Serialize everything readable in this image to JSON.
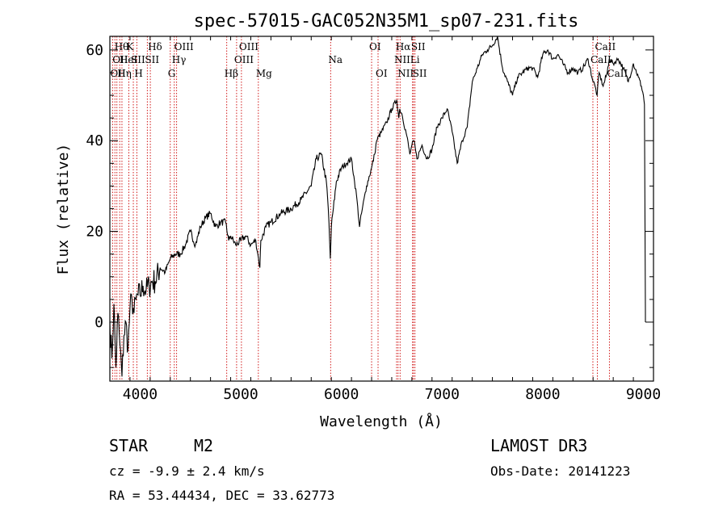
{
  "chart_data": {
    "type": "line",
    "title": "spec-57015-GAC052N35M1_sp07-231.fits",
    "xlabel": "Wavelength (Å)",
    "ylabel": "Flux (relative)",
    "xlim": [
      3700,
      9100
    ],
    "ylim": [
      -13,
      63
    ],
    "xticks": [
      4000,
      5000,
      6000,
      7000,
      8000,
      9000
    ],
    "yticks": [
      0,
      20,
      40,
      60
    ],
    "series": [
      {
        "name": "spectrum",
        "x": [
          3700,
          3720,
          3740,
          3760,
          3780,
          3800,
          3820,
          3840,
          3860,
          3880,
          3900,
          3920,
          3940,
          3960,
          3980,
          4000,
          4030,
          4060,
          4090,
          4120,
          4150,
          4200,
          4250,
          4300,
          4350,
          4400,
          4450,
          4500,
          4550,
          4600,
          4650,
          4700,
          4750,
          4800,
          4850,
          4880,
          4900,
          4950,
          5000,
          5050,
          5100,
          5150,
          5170,
          5190,
          5200,
          5250,
          5300,
          5400,
          5500,
          5600,
          5700,
          5750,
          5800,
          5850,
          5870,
          5890,
          5900,
          5920,
          5950,
          6000,
          6050,
          6100,
          6130,
          6150,
          6180,
          6200,
          6250,
          6300,
          6330,
          6350,
          6400,
          6450,
          6500,
          6550,
          6570,
          6580,
          6600,
          6650,
          6680,
          6700,
          6720,
          6750,
          6800,
          6850,
          6900,
          6950,
          7000,
          7050,
          7100,
          7150,
          7200,
          7250,
          7300,
          7350,
          7400,
          7450,
          7500,
          7550,
          7600,
          7650,
          7700,
          7750,
          7800,
          7850,
          7900,
          7950,
          8000,
          8050,
          8100,
          8150,
          8200,
          8250,
          8300,
          8350,
          8400,
          8450,
          8500,
          8520,
          8540,
          8560,
          8600,
          8640,
          8660,
          8700,
          8750,
          8800,
          8850,
          8900,
          8950,
          8980,
          9000,
          9010,
          9020
        ],
        "y": [
          0,
          -8,
          4,
          -10,
          2,
          -5,
          -12,
          -3,
          0,
          -6,
          3,
          5,
          2,
          5,
          6,
          6,
          8,
          7,
          8,
          9,
          9,
          12,
          11,
          14,
          15,
          15,
          17,
          20,
          17,
          21,
          23,
          24,
          21,
          22,
          22,
          18,
          19,
          17,
          18,
          19,
          17,
          18,
          15,
          12,
          18,
          21,
          22,
          24,
          25,
          27,
          30,
          36,
          37,
          31,
          25,
          14,
          21,
          25,
          31,
          34,
          35,
          36,
          31,
          28,
          21,
          24,
          30,
          34,
          37,
          40,
          42,
          44,
          47,
          49,
          45,
          47,
          46,
          41,
          37,
          39,
          40,
          36,
          39,
          36,
          38,
          43,
          45,
          47,
          42,
          35,
          40,
          43,
          53,
          56,
          59,
          60,
          61,
          63,
          56,
          53,
          50,
          54,
          55,
          56,
          56,
          54,
          59,
          60,
          58,
          59,
          57,
          55,
          56,
          55,
          56,
          58,
          53,
          52,
          50,
          55,
          52,
          55,
          58,
          57,
          58,
          56,
          53,
          57,
          54,
          52,
          50,
          48,
          2
        ]
      }
    ],
    "line_labels": [
      {
        "wave": 3727,
        "label": "OII",
        "row": 2,
        "ha": "left"
      },
      {
        "wave": 3750,
        "label": "OII",
        "row": 1,
        "ha": "left"
      },
      {
        "wave": 3770,
        "label": "Hθ",
        "row": 0,
        "ha": "left"
      },
      {
        "wave": 3798,
        "label": "Hη",
        "row": 2,
        "ha": "left"
      },
      {
        "wave": 3820,
        "label": "HeI",
        "row": 1,
        "ha": "left"
      },
      {
        "wave": 3889,
        "label": "K",
        "row": 0,
        "ha": "left"
      },
      {
        "wave": 3933,
        "label": "SII",
        "row": 1,
        "ha": "left"
      },
      {
        "wave": 3968,
        "label": "H",
        "row": 2,
        "ha": "left"
      },
      {
        "wave": 4072,
        "label": "SII",
        "row": 1,
        "ha": "left"
      },
      {
        "wave": 4102,
        "label": "Hδ",
        "row": 0,
        "ha": "left"
      },
      {
        "wave": 4300,
        "label": "G",
        "row": 2,
        "ha": "left"
      },
      {
        "wave": 4340,
        "label": "Hγ",
        "row": 1,
        "ha": "left"
      },
      {
        "wave": 4363,
        "label": "OIII",
        "row": 0,
        "ha": "left"
      },
      {
        "wave": 4861,
        "label": "Hβ",
        "row": 2,
        "ha": "left"
      },
      {
        "wave": 4959,
        "label": "OIII",
        "row": 1,
        "ha": "left"
      },
      {
        "wave": 5007,
        "label": "OIII",
        "row": 0,
        "ha": "left"
      },
      {
        "wave": 5175,
        "label": "Mg",
        "row": 2,
        "ha": "left"
      },
      {
        "wave": 5893,
        "label": "Na",
        "row": 1,
        "ha": "left"
      },
      {
        "wave": 6300,
        "label": "OI",
        "row": 0,
        "ha": "left"
      },
      {
        "wave": 6364,
        "label": "OI",
        "row": 2,
        "ha": "left"
      },
      {
        "wave": 6548,
        "label": "NII",
        "row": 1,
        "ha": "left"
      },
      {
        "wave": 6563,
        "label": "Hα",
        "row": 0,
        "ha": "left"
      },
      {
        "wave": 6583,
        "label": "NII",
        "row": 2,
        "ha": "left"
      },
      {
        "wave": 6707,
        "label": "Li",
        "row": 1,
        "ha": "left"
      },
      {
        "wave": 6716,
        "label": "SII",
        "row": 0,
        "ha": "left"
      },
      {
        "wave": 6731,
        "label": "SII",
        "row": 2,
        "ha": "left"
      },
      {
        "wave": 8498,
        "label": "CaII",
        "row": 1,
        "ha": "left"
      },
      {
        "wave": 8542,
        "label": "CaII",
        "row": 0,
        "ha": "left"
      },
      {
        "wave": 8662,
        "label": "CaII",
        "row": 2,
        "ha": "left"
      }
    ],
    "colors": {
      "line": "#000000",
      "marker": "#cc0000",
      "frame": "#000000"
    }
  },
  "info": {
    "class": "STAR",
    "subclass": "M2",
    "survey": "LAMOST DR3",
    "cz": "cz = -9.9 ± 2.4 km/s",
    "obs_date": "Obs-Date: 20141223",
    "coords": "RA =  53.44434, DEC =  33.62773"
  }
}
